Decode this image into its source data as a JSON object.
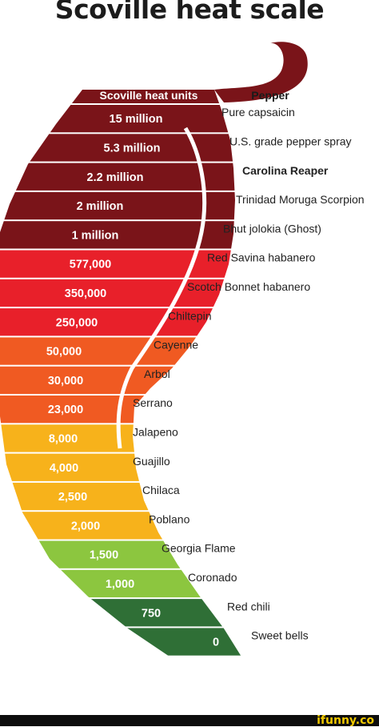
{
  "page_title": "Scoville heat scale",
  "watermark": "ifunny.co",
  "chart_data": {
    "type": "table",
    "columns": [
      "Scoville heat units",
      "Pepper"
    ],
    "rows": [
      {
        "shu": "15 million",
        "pepper": "Pure capsaicin",
        "color": "#7a1419"
      },
      {
        "shu": "5.3 million",
        "pepper": "U.S. grade pepper spray",
        "color": "#7a1419"
      },
      {
        "shu": "2.2 million",
        "pepper": "Carolina Reaper",
        "color": "#7a1419",
        "bold": true
      },
      {
        "shu": "2 million",
        "pepper": "Trinidad Moruga Scorpion",
        "color": "#7a1419"
      },
      {
        "shu": "1 million",
        "pepper": "Bhut jolokia (Ghost)",
        "color": "#7a1419"
      },
      {
        "shu": "577,000",
        "pepper": "Red Savina habanero",
        "color": "#e8202a"
      },
      {
        "shu": "350,000",
        "pepper": "Scotch Bonnet habanero",
        "color": "#e8202a"
      },
      {
        "shu": "250,000",
        "pepper": "Chiltepin",
        "color": "#e8202a"
      },
      {
        "shu": "50,000",
        "pepper": "Cayenne",
        "color": "#f05a22"
      },
      {
        "shu": "30,000",
        "pepper": "Arbol",
        "color": "#f05a22"
      },
      {
        "shu": "23,000",
        "pepper": "Serrano",
        "color": "#f05a22"
      },
      {
        "shu": "8,000",
        "pepper": "Jalapeno",
        "color": "#f7b21b"
      },
      {
        "shu": "4,000",
        "pepper": "Guajillo",
        "color": "#f7b21b"
      },
      {
        "shu": "2,500",
        "pepper": "Chilaca",
        "color": "#f7b21b"
      },
      {
        "shu": "2,000",
        "pepper": "Poblano",
        "color": "#f7b21b"
      },
      {
        "shu": "1,500",
        "pepper": "Georgia Flame",
        "color": "#8cc63f"
      },
      {
        "shu": "1,000",
        "pepper": "Coronado",
        "color": "#8cc63f"
      },
      {
        "shu": "750",
        "pepper": "Red chili",
        "color": "#2f6f36"
      },
      {
        "shu": "0",
        "pepper": "Sweet bells",
        "color": "#2f6f36"
      }
    ],
    "header_color": "#7a1419",
    "stem_color": "#7a1419"
  }
}
